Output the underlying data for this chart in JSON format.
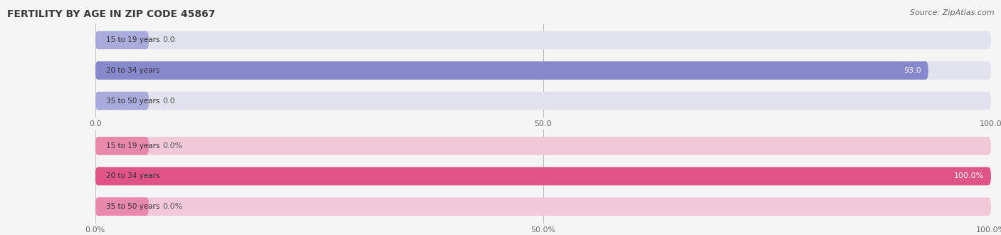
{
  "title": "FERTILITY BY AGE IN ZIP CODE 45867",
  "source": "Source: ZipAtlas.com",
  "title_fontsize": 10,
  "source_fontsize": 8,
  "background_color": "#f5f5f5",
  "top_chart": {
    "categories": [
      "15 to 19 years",
      "20 to 34 years",
      "35 to 50 years"
    ],
    "values": [
      0.0,
      93.0,
      0.0
    ],
    "bar_color": "#8888cc",
    "bar_bg_color": "#e2e2ee",
    "small_bar_color": "#aaaadd",
    "label_color_inside": "#ffffff",
    "label_color_outside": "#555555",
    "xlim": [
      0,
      100
    ],
    "xticks": [
      0.0,
      50.0,
      100.0
    ],
    "pct": false
  },
  "bottom_chart": {
    "categories": [
      "15 to 19 years",
      "20 to 34 years",
      "35 to 50 years"
    ],
    "values": [
      0.0,
      100.0,
      0.0
    ],
    "bar_color": "#e05585",
    "bar_bg_color": "#f0c8d8",
    "small_bar_color": "#e888aa",
    "label_color_inside": "#ffffff",
    "label_color_outside": "#555555",
    "xlim": [
      0,
      100
    ],
    "xticks": [
      0.0,
      50.0,
      100.0
    ],
    "pct": true
  }
}
